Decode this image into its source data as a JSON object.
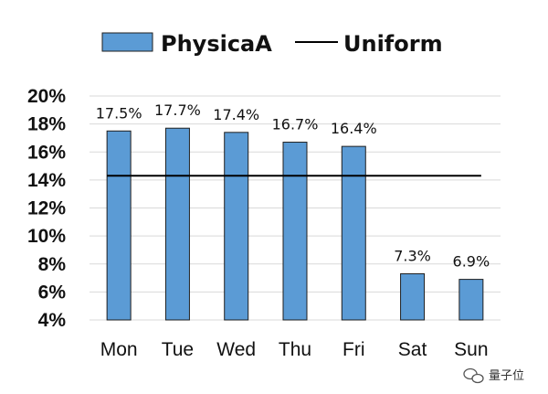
{
  "chart_data": {
    "type": "bar",
    "categories": [
      "Mon",
      "Tue",
      "Wed",
      "Thu",
      "Fri",
      "Sat",
      "Sun"
    ],
    "series": [
      {
        "name": "PhysicaA",
        "kind": "bar",
        "values": [
          17.5,
          17.7,
          17.4,
          16.7,
          16.4,
          7.3,
          6.9
        ],
        "color": "#5b9bd5"
      },
      {
        "name": "Uniform",
        "kind": "line",
        "value": 14.3,
        "color": "#000000"
      }
    ],
    "data_labels": [
      "17.5%",
      "17.7%",
      "17.4%",
      "16.7%",
      "16.4%",
      "7.3%",
      "6.9%"
    ],
    "yticks": [
      4,
      6,
      8,
      10,
      12,
      14,
      16,
      18,
      20
    ],
    "ytick_labels": [
      "4%",
      "6%",
      "8%",
      "10%",
      "12%",
      "14%",
      "16%",
      "18%",
      "20%"
    ],
    "ylim": [
      4,
      20
    ],
    "grid": true,
    "legend_position": "top",
    "title": "",
    "xlabel": "",
    "ylabel": ""
  },
  "legend": {
    "bar_label": "PhysicaA",
    "line_label": "Uniform"
  },
  "watermark": {
    "text": "量子位",
    "icon": "wechat-icon"
  }
}
